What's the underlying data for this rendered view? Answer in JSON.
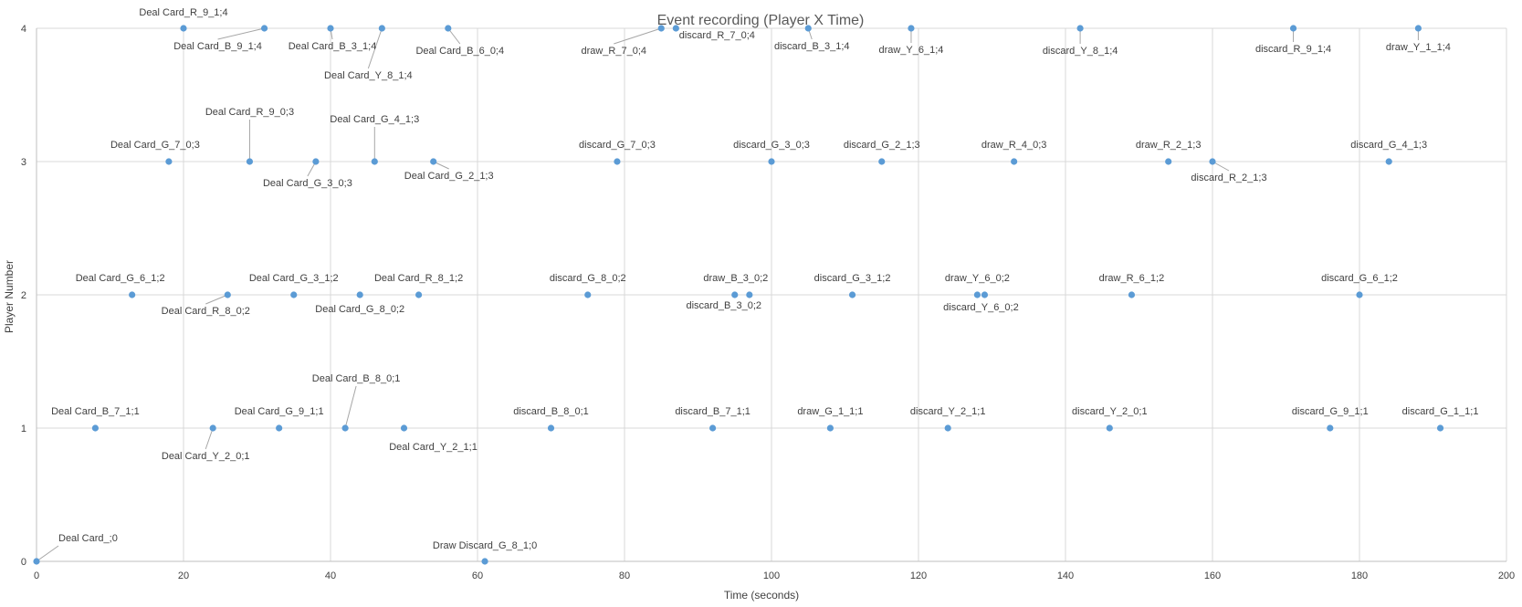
{
  "chart_data": {
    "type": "scatter",
    "title": "Event recording (Player X Time)",
    "xlabel": "Time (seconds)",
    "ylabel": "Player Number",
    "xlim": [
      0,
      200
    ],
    "ylim": [
      0,
      4
    ],
    "x_ticks": [
      0,
      20,
      40,
      60,
      80,
      100,
      120,
      140,
      160,
      180,
      200
    ],
    "y_ticks": [
      0,
      1,
      2,
      3,
      4
    ],
    "grid": true,
    "legend": "none",
    "colors": {
      "marker": "#5b9bd5"
    },
    "points": [
      {
        "x": 0,
        "y": 0,
        "label": "Deal Card_;0"
      },
      {
        "x": 61,
        "y": 0,
        "label": "Draw Discard_G_8_1;0"
      },
      {
        "x": 8,
        "y": 1,
        "label": "Deal Card_B_7_1;1"
      },
      {
        "x": 24,
        "y": 1,
        "label": "Deal Card_Y_2_0;1"
      },
      {
        "x": 33,
        "y": 1,
        "label": "Deal Card_G_9_1;1"
      },
      {
        "x": 42,
        "y": 1,
        "label": "Deal Card_B_8_0;1"
      },
      {
        "x": 50,
        "y": 1,
        "label": "Deal Card_Y_2_1;1"
      },
      {
        "x": 70,
        "y": 1,
        "label": "discard_B_8_0;1"
      },
      {
        "x": 92,
        "y": 1,
        "label": "discard_B_7_1;1"
      },
      {
        "x": 108,
        "y": 1,
        "label": "draw_G_1_1;1"
      },
      {
        "x": 124,
        "y": 1,
        "label": "discard_Y_2_1;1"
      },
      {
        "x": 146,
        "y": 1,
        "label": "discard_Y_2_0;1"
      },
      {
        "x": 176,
        "y": 1,
        "label": "discard_G_9_1;1"
      },
      {
        "x": 191,
        "y": 1,
        "label": "discard_G_1_1;1"
      },
      {
        "x": 13,
        "y": 2,
        "label": "Deal Card_G_6_1;2"
      },
      {
        "x": 26,
        "y": 2,
        "label": "Deal Card_R_8_0;2"
      },
      {
        "x": 35,
        "y": 2,
        "label": "Deal Card_G_3_1;2"
      },
      {
        "x": 44,
        "y": 2,
        "label": "Deal Card_G_8_0;2"
      },
      {
        "x": 52,
        "y": 2,
        "label": "Deal Card_R_8_1;2"
      },
      {
        "x": 75,
        "y": 2,
        "label": "discard_G_8_0;2"
      },
      {
        "x": 95,
        "y": 2,
        "label": "discard_B_3_0;2"
      },
      {
        "x": 97,
        "y": 2,
        "label": "draw_B_3_0;2"
      },
      {
        "x": 111,
        "y": 2,
        "label": "discard_G_3_1;2"
      },
      {
        "x": 128,
        "y": 2,
        "label": "draw_Y_6_0;2"
      },
      {
        "x": 129,
        "y": 2,
        "label": "discard_Y_6_0;2"
      },
      {
        "x": 149,
        "y": 2,
        "label": "draw_R_6_1;2"
      },
      {
        "x": 180,
        "y": 2,
        "label": "discard_G_6_1;2"
      },
      {
        "x": 18,
        "y": 3,
        "label": "Deal Card_G_7_0;3"
      },
      {
        "x": 29,
        "y": 3,
        "label": "Deal Card_R_9_0;3"
      },
      {
        "x": 38,
        "y": 3,
        "label": "Deal Card_G_3_0;3"
      },
      {
        "x": 46,
        "y": 3,
        "label": "Deal Card_G_4_1;3"
      },
      {
        "x": 54,
        "y": 3,
        "label": "Deal Card_G_2_1;3"
      },
      {
        "x": 79,
        "y": 3,
        "label": "discard_G_7_0;3"
      },
      {
        "x": 100,
        "y": 3,
        "label": "discard_G_3_0;3"
      },
      {
        "x": 115,
        "y": 3,
        "label": "discard_G_2_1;3"
      },
      {
        "x": 133,
        "y": 3,
        "label": "draw_R_4_0;3"
      },
      {
        "x": 154,
        "y": 3,
        "label": "draw_R_2_1;3"
      },
      {
        "x": 160,
        "y": 3,
        "label": "discard_R_2_1;3"
      },
      {
        "x": 184,
        "y": 3,
        "label": "discard_G_4_1;3"
      },
      {
        "x": 20,
        "y": 4,
        "label": "Deal Card_R_9_1;4"
      },
      {
        "x": 31,
        "y": 4,
        "label": "Deal Card_B_9_1;4"
      },
      {
        "x": 40,
        "y": 4,
        "label": "Deal Card_B_3_1;4"
      },
      {
        "x": 47,
        "y": 4,
        "label": "Deal Card_Y_8_1;4"
      },
      {
        "x": 56,
        "y": 4,
        "label": "Deal Card_B_6_0;4"
      },
      {
        "x": 85,
        "y": 4,
        "label": "draw_R_7_0;4"
      },
      {
        "x": 87,
        "y": 4,
        "label": "discard_R_7_0;4"
      },
      {
        "x": 105,
        "y": 4,
        "label": "discard_B_3_1;4"
      },
      {
        "x": 119,
        "y": 4,
        "label": "draw_Y_6_1;4"
      },
      {
        "x": 142,
        "y": 4,
        "label": "discard_Y_8_1;4"
      },
      {
        "x": 171,
        "y": 4,
        "label": "discard_R_9_1;4"
      },
      {
        "x": 188,
        "y": 4,
        "label": "draw_Y_1_1;4"
      }
    ]
  }
}
